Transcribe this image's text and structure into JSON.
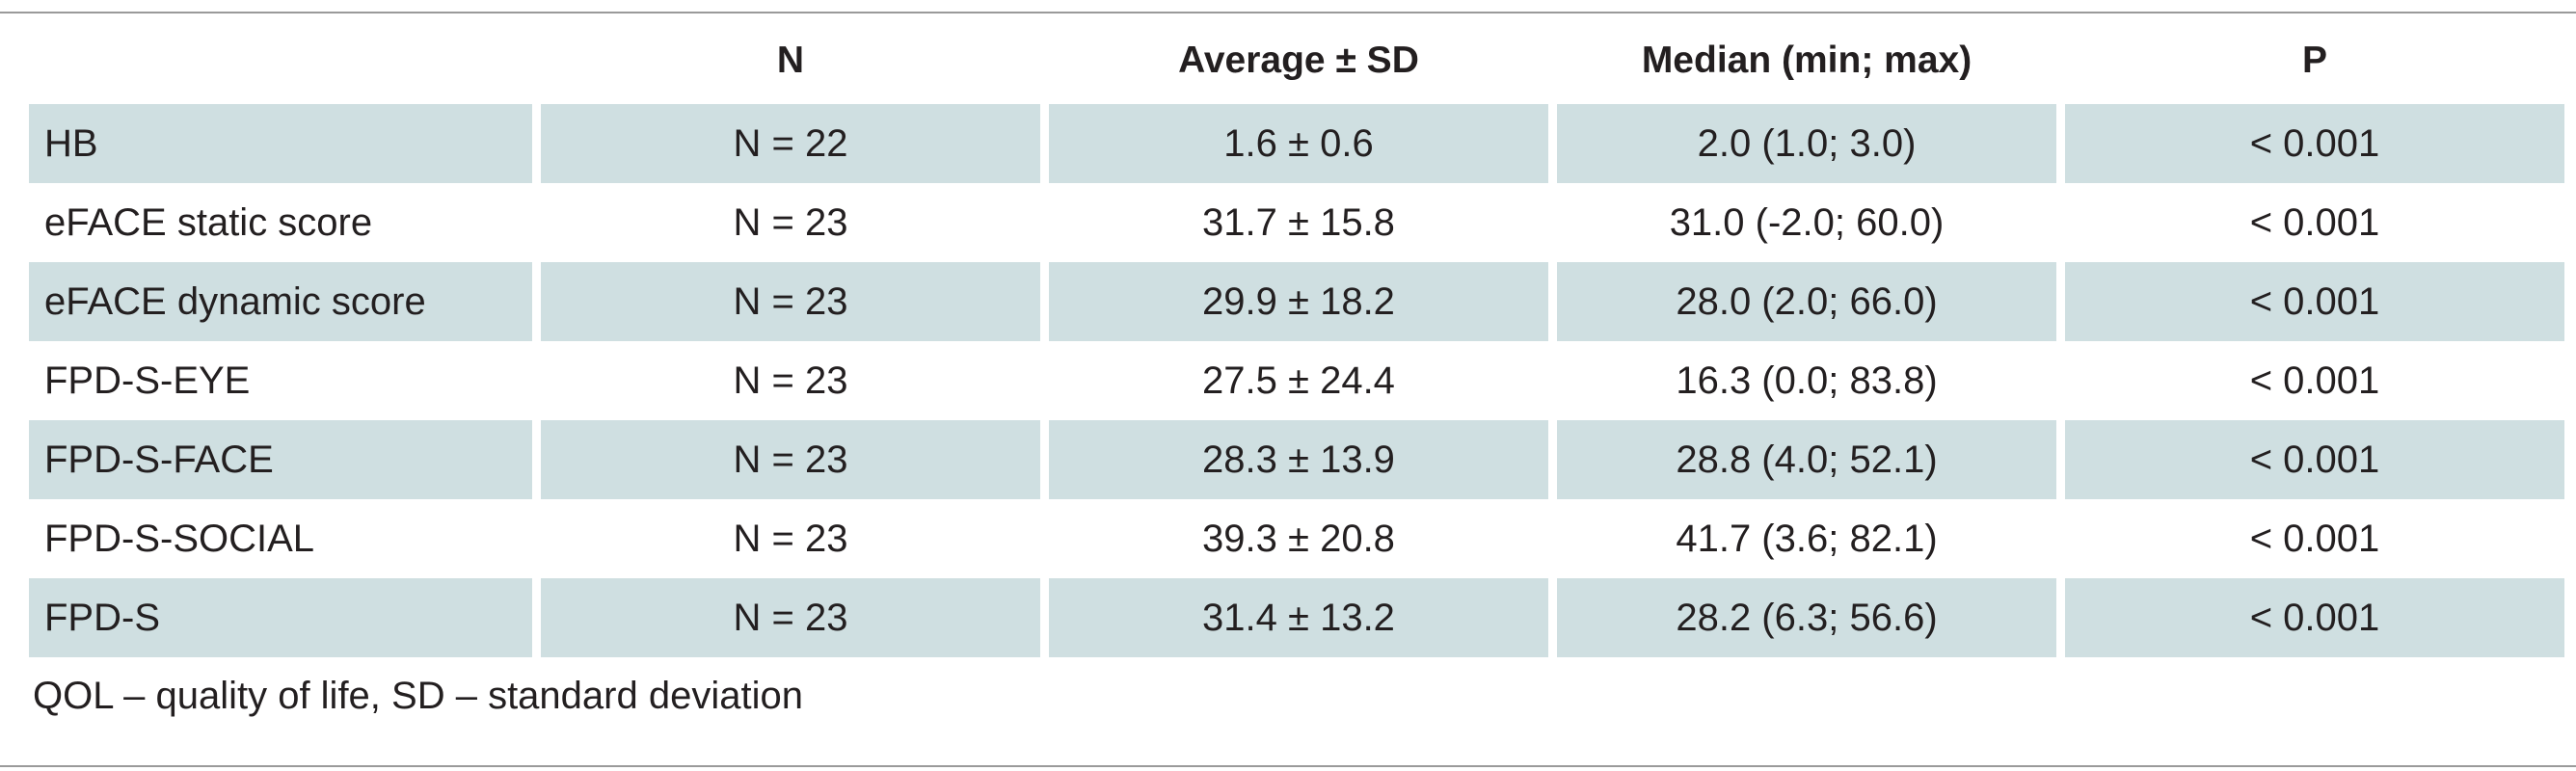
{
  "table": {
    "headers": [
      "",
      "N",
      "Average ± SD",
      "Median (min; max)",
      "P"
    ],
    "rows": [
      {
        "label": "HB",
        "n": "N = 22",
        "avg": "1.6 ± 0.6",
        "median": "2.0 (1.0; 3.0)",
        "p": "< 0.001"
      },
      {
        "label": "eFACE static score",
        "n": "N = 23",
        "avg": "31.7 ± 15.8",
        "median": "31.0 (-2.0; 60.0)",
        "p": "< 0.001"
      },
      {
        "label": "eFACE dynamic score",
        "n": "N = 23",
        "avg": "29.9 ± 18.2",
        "median": "28.0 (2.0; 66.0)",
        "p": "< 0.001"
      },
      {
        "label": "FPD-S-EYE",
        "n": "N = 23",
        "avg": "27.5 ± 24.4",
        "median": "16.3 (0.0; 83.8)",
        "p": "< 0.001"
      },
      {
        "label": "FPD-S-FACE",
        "n": "N = 23",
        "avg": "28.3 ± 13.9",
        "median": "28.8 (4.0; 52.1)",
        "p": "< 0.001"
      },
      {
        "label": "FPD-S-SOCIAL",
        "n": "N = 23",
        "avg": "39.3 ± 20.8",
        "median": "41.7 (3.6; 82.1)",
        "p": "< 0.001"
      },
      {
        "label": "FPD-S",
        "n": "N = 23",
        "avg": "31.4 ± 13.2",
        "median": "28.2 (6.3; 56.6)",
        "p": "< 0.001"
      }
    ],
    "shaded_color": "#cfdfe1"
  },
  "footnote": "QOL –  quality of life, SD – standard deviation"
}
